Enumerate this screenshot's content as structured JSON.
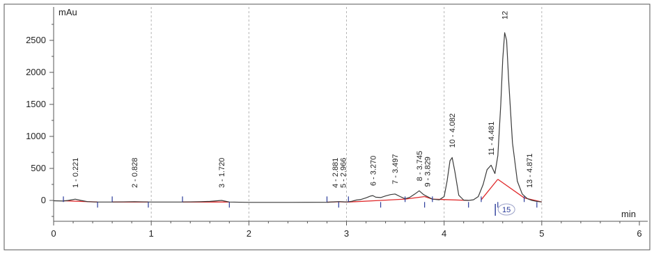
{
  "chart_data": {
    "type": "line",
    "y_unit": "mAu",
    "x_unit": "min",
    "xlim": [
      0,
      6
    ],
    "ylim": [
      -280,
      2950
    ],
    "x_ticks": [
      0,
      1,
      2,
      3,
      4,
      5,
      6
    ],
    "y_ticks": [
      0,
      500,
      1000,
      1500,
      2000,
      2500
    ],
    "x_tick_labels": [
      "0",
      "1",
      "2",
      "3",
      "4",
      "5",
      "6"
    ],
    "y_tick_labels": [
      "0",
      "500",
      "1000",
      "1500",
      "2000",
      "2500"
    ],
    "vertical_grid": [
      0,
      1,
      2,
      3,
      4,
      5
    ],
    "series": [
      {
        "x": [
          0.0,
          0.1,
          0.15,
          0.221,
          0.28,
          0.35,
          0.45,
          0.6,
          0.828,
          1.0,
          1.3,
          1.5,
          1.6,
          1.72,
          1.8,
          2.0,
          2.4,
          2.8,
          2.881,
          2.92,
          2.966,
          3.0,
          3.05,
          3.1,
          3.15,
          3.2,
          3.25,
          3.27,
          3.3,
          3.35,
          3.4,
          3.45,
          3.497,
          3.55,
          3.6,
          3.65,
          3.7,
          3.745,
          3.79,
          3.829,
          3.88,
          3.95,
          4.0,
          4.03,
          4.06,
          4.082,
          4.11,
          4.15,
          4.2,
          4.25,
          4.3,
          4.35,
          4.4,
          4.44,
          4.481,
          4.52,
          4.55,
          4.58,
          4.6,
          4.62,
          4.64,
          4.66,
          4.7,
          4.75,
          4.8,
          4.85,
          4.871,
          4.9,
          4.95,
          5.0
        ],
        "y": [
          -5,
          -10,
          0,
          20,
          0,
          -20,
          -25,
          -25,
          -20,
          -25,
          -25,
          -20,
          -15,
          0,
          -25,
          -30,
          -30,
          -28,
          -22,
          -18,
          -22,
          -25,
          -15,
          5,
          15,
          40,
          70,
          75,
          50,
          45,
          70,
          90,
          100,
          60,
          25,
          50,
          100,
          150,
          90,
          60,
          20,
          10,
          60,
          300,
          620,
          670,
          450,
          80,
          5,
          0,
          10,
          60,
          250,
          480,
          550,
          420,
          700,
          1500,
          2200,
          2620,
          2500,
          1900,
          900,
          300,
          100,
          30,
          15,
          0,
          -15,
          -25
        ]
      }
    ],
    "peaks": [
      {
        "label": "1 - 0.221",
        "rt": 0.221,
        "height": 20
      },
      {
        "label": "2 - 0.828",
        "rt": 0.828,
        "height": -20
      },
      {
        "label": "3 - 1.720",
        "rt": 1.72,
        "height": 0
      },
      {
        "label": "4 - 2.881",
        "rt": 2.881,
        "height": -22
      },
      {
        "label": "5 - 2.966",
        "rt": 2.966,
        "height": -22
      },
      {
        "label": "6 - 3.270",
        "rt": 3.27,
        "height": 75
      },
      {
        "label": "7 - 3.497",
        "rt": 3.497,
        "height": 100
      },
      {
        "label": "8 - 3.745",
        "rt": 3.745,
        "height": 150
      },
      {
        "label": "9 - 3.829",
        "rt": 3.829,
        "height": 60
      },
      {
        "label": "10 - 4.082",
        "rt": 4.082,
        "height": 670
      },
      {
        "label": "11 - 4.481",
        "rt": 4.481,
        "height": 550
      },
      {
        "label": "12",
        "rt": 4.62,
        "height": 2620
      },
      {
        "label": "13 - 4.871",
        "rt": 4.871,
        "height": 15
      }
    ],
    "baselines": [
      [
        [
          0.1,
          -5
        ],
        [
          0.45,
          -25
        ]
      ],
      [
        [
          0.6,
          -25
        ],
        [
          0.97,
          -25
        ]
      ],
      [
        [
          1.32,
          -25
        ],
        [
          1.8,
          -25
        ]
      ],
      [
        [
          2.8,
          -28
        ],
        [
          2.92,
          -22
        ]
      ],
      [
        [
          2.92,
          -22
        ],
        [
          3.02,
          -25
        ]
      ],
      [
        [
          3.02,
          -25
        ],
        [
          3.35,
          0
        ]
      ],
      [
        [
          3.35,
          0
        ],
        [
          3.6,
          20
        ]
      ],
      [
        [
          3.6,
          20
        ],
        [
          3.8,
          60
        ]
      ],
      [
        [
          3.8,
          60
        ],
        [
          3.88,
          20
        ]
      ],
      [
        [
          3.88,
          20
        ],
        [
          4.25,
          0
        ]
      ],
      [
        [
          4.38,
          10
        ],
        [
          4.55,
          330
        ]
      ],
      [
        [
          4.55,
          330
        ],
        [
          4.82,
          40
        ]
      ],
      [
        [
          4.82,
          40
        ],
        [
          5.0,
          -25
        ]
      ]
    ],
    "markers": [
      0.1,
      0.45,
      0.6,
      0.97,
      1.32,
      1.8,
      2.8,
      2.92,
      3.02,
      3.35,
      3.6,
      3.8,
      3.88,
      4.25,
      4.38,
      4.55,
      4.82,
      4.95
    ],
    "badge": {
      "text": "15",
      "rt": 4.56
    },
    "colors": {
      "signal": "#3a3a3a",
      "baseline": "#e0282a",
      "marker": "#2a3b9a",
      "grid": "#b5b5b5",
      "axis": "#555555"
    }
  }
}
